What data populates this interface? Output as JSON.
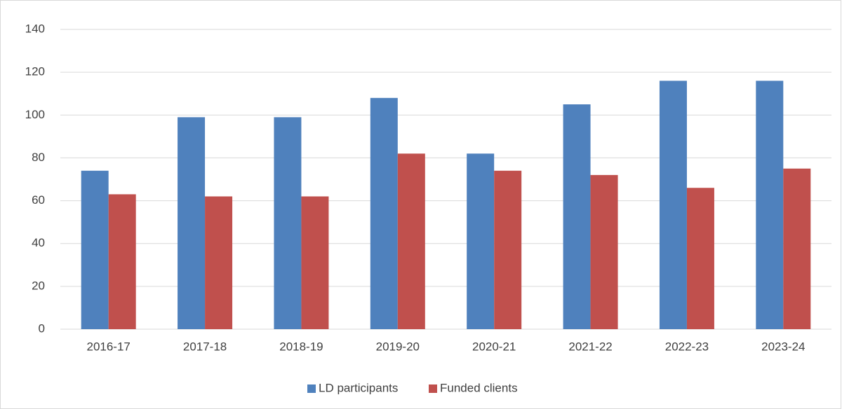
{
  "chart_data": {
    "type": "bar",
    "categories": [
      "2016-17",
      "2017-18",
      "2018-19",
      "2019-20",
      "2020-21",
      "2021-22",
      "2022-23",
      "2023-24"
    ],
    "series": [
      {
        "name": "LD participants",
        "color": "#4f81bd",
        "values": [
          74,
          99,
          99,
          108,
          82,
          105,
          116,
          116
        ]
      },
      {
        "name": "Funded clients",
        "color": "#c0504d",
        "values": [
          63,
          62,
          62,
          82,
          74,
          72,
          66,
          75
        ]
      }
    ],
    "ylim": [
      0,
      140
    ],
    "yticks": [
      0,
      20,
      40,
      60,
      80,
      100,
      120,
      140
    ],
    "grid": true,
    "legend": "bottom"
  }
}
